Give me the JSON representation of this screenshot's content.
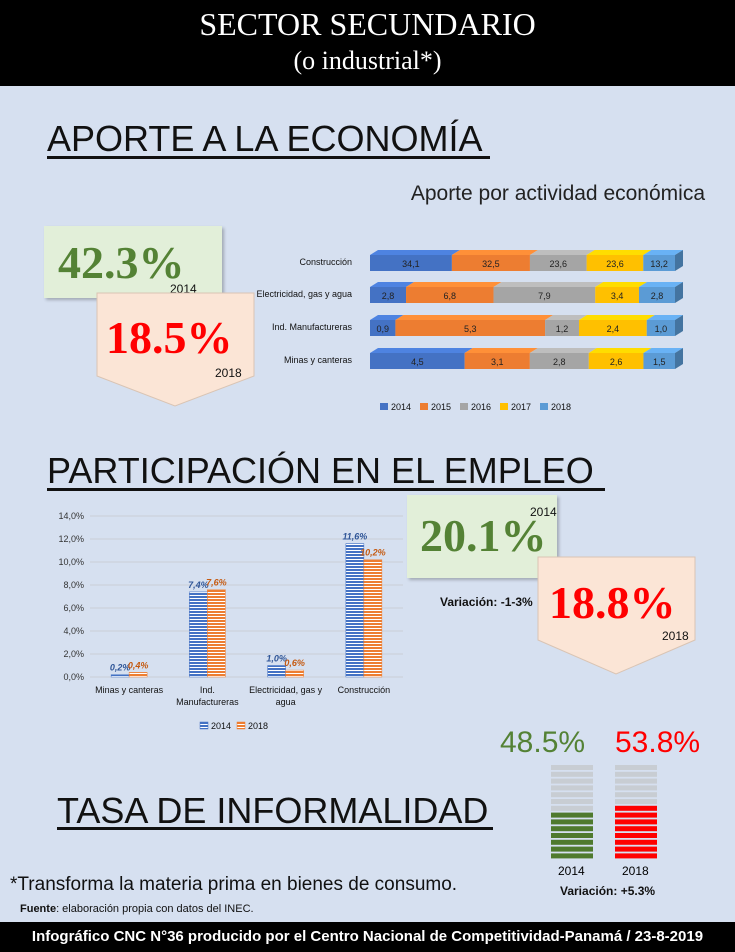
{
  "header": {
    "title": "SECTOR SECUNDARIO",
    "subtitle": "(o industrial*)"
  },
  "sections": {
    "economy": "APORTE A LA ECONOMÍA",
    "employment": "PARTICIPACIÓN EN EL EMPLEO",
    "informality": "TASA DE INFORMALIDAD"
  },
  "economy_callouts": {
    "v2014": "42.3%",
    "y2014": "2014",
    "v2018": "18.5%",
    "y2018": "2018"
  },
  "employment_callouts": {
    "v2014": "20.1%",
    "y2014": "2014",
    "v2018": "18.8%",
    "y2018": "2018",
    "variation": "Variación: -1-3%"
  },
  "informality": {
    "v2014": "48.5%",
    "y2014": "2014",
    "v2018": "53.8%",
    "y2018": "2018",
    "variation": "Variación: +5.3%",
    "color_2014": "#4f7a2e",
    "color_2018": "#ff0000",
    "color_empty": "#c8cdd3"
  },
  "footnote": "*Transforma la materia prima en bienes de consumo.",
  "source_label": "Fuente",
  "source_text": ": elaboración propia con datos del INEC.",
  "footer": "Infográfico CNC N°36 producido por el Centro Nacional de Competitividad-Panamá / 23-8-2019",
  "chart_data": [
    {
      "type": "bar",
      "orientation": "horizontal-stacked",
      "title": "Aporte por actividad económica",
      "categories": [
        "Construcción",
        "Electricidad, gas y agua",
        "Ind. Manufactureras",
        "Minas y canteras"
      ],
      "series": [
        {
          "name": "2014",
          "color": "#4472c4",
          "values": [
            34.1,
            2.8,
            0.9,
            4.5
          ],
          "labels": [
            "34,1",
            "2,8",
            "0,9",
            "4,5"
          ]
        },
        {
          "name": "2015",
          "color": "#ed7d31",
          "values": [
            32.5,
            6.8,
            5.3,
            3.1
          ],
          "labels": [
            "32,5",
            "6,8",
            "5,3",
            "3,1"
          ]
        },
        {
          "name": "2016",
          "color": "#a5a5a5",
          "values": [
            23.6,
            7.9,
            1.2,
            2.8
          ],
          "labels": [
            "23,6",
            "7,9",
            "1,2",
            "2,8"
          ]
        },
        {
          "name": "2017",
          "color": "#ffc000",
          "values": [
            23.6,
            3.4,
            2.4,
            2.6
          ],
          "labels": [
            "23,6",
            "3,4",
            "2,4",
            "2,6"
          ]
        },
        {
          "name": "2018",
          "color": "#5b9bd5",
          "values": [
            13.2,
            2.8,
            1.0,
            1.5
          ],
          "labels": [
            "13,2",
            "2,8",
            "1,0",
            "1,5"
          ]
        }
      ],
      "legend": "bottom"
    },
    {
      "type": "bar",
      "categories": [
        "Minas y canteras",
        "Ind. Manufactureras",
        "Electricidad, gas y agua",
        "Construcción"
      ],
      "series": [
        {
          "name": "2014",
          "color": "#4472c4",
          "values": [
            0.2,
            7.4,
            1.0,
            11.6
          ],
          "labels": [
            "0,2%",
            "7,4%",
            "1,0%",
            "11,6%"
          ]
        },
        {
          "name": "2018",
          "color": "#ed7d31",
          "values": [
            0.4,
            7.6,
            0.6,
            10.2
          ],
          "labels": [
            "0,4%",
            "7,6%",
            "0,6%",
            "10,2%"
          ]
        }
      ],
      "ylim": [
        0,
        14
      ],
      "yticks": [
        "0,0%",
        "2,0%",
        "4,0%",
        "6,0%",
        "8,0%",
        "10,0%",
        "12,0%",
        "14,0%"
      ],
      "legend": "bottom"
    }
  ]
}
